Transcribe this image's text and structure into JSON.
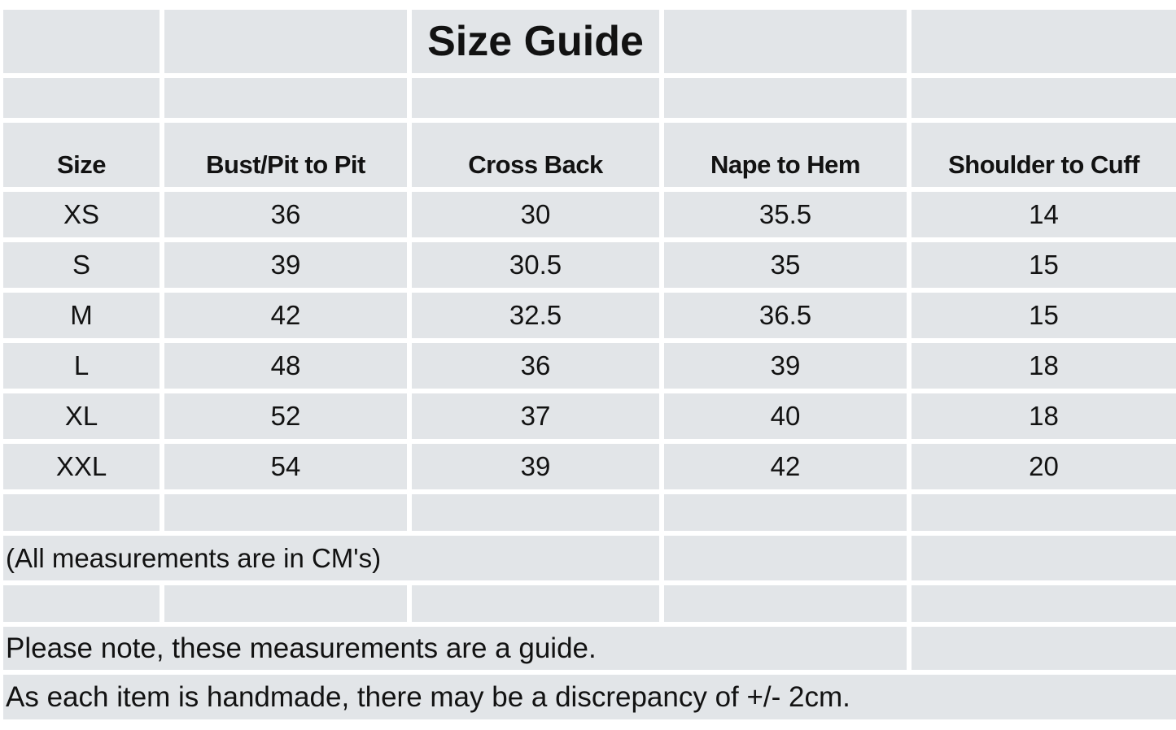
{
  "title": "Size Guide",
  "table": {
    "columns": [
      "Size",
      "Bust/Pit to Pit",
      "Cross Back",
      "Nape to Hem",
      "Shoulder to Cuff"
    ],
    "rows": [
      [
        "XS",
        "36",
        "30",
        "35.5",
        "14"
      ],
      [
        "S",
        "39",
        "30.5",
        "35",
        "15"
      ],
      [
        "M",
        "42",
        "32.5",
        "36.5",
        "15"
      ],
      [
        "L",
        "48",
        "36",
        "39",
        "18"
      ],
      [
        "XL",
        "52",
        "37",
        "40",
        "18"
      ],
      [
        "XXL",
        "54",
        "39",
        "42",
        "20"
      ]
    ]
  },
  "notes": {
    "units": "(All measurements are in CM's)",
    "guide": "Please note, these measurements are a guide.",
    "handmade": "As each item is handmade, there may be a discrepancy of +/- 2cm."
  },
  "chart_data": {
    "type": "table",
    "title": "Size Guide",
    "columns": [
      "Size",
      "Bust/Pit to Pit",
      "Cross Back",
      "Nape to Hem",
      "Shoulder to Cuff"
    ],
    "rows": [
      [
        "XS",
        36,
        30,
        35.5,
        14
      ],
      [
        "S",
        39,
        30.5,
        35,
        15
      ],
      [
        "M",
        42,
        32.5,
        36.5,
        15
      ],
      [
        "L",
        48,
        36,
        39,
        18
      ],
      [
        "XL",
        52,
        37,
        40,
        18
      ],
      [
        "XXL",
        54,
        39,
        42,
        20
      ]
    ],
    "units": "CM"
  },
  "colors": {
    "cell_background": "#e2e5e8",
    "gridline": "#ffffff",
    "text": "#121212"
  }
}
